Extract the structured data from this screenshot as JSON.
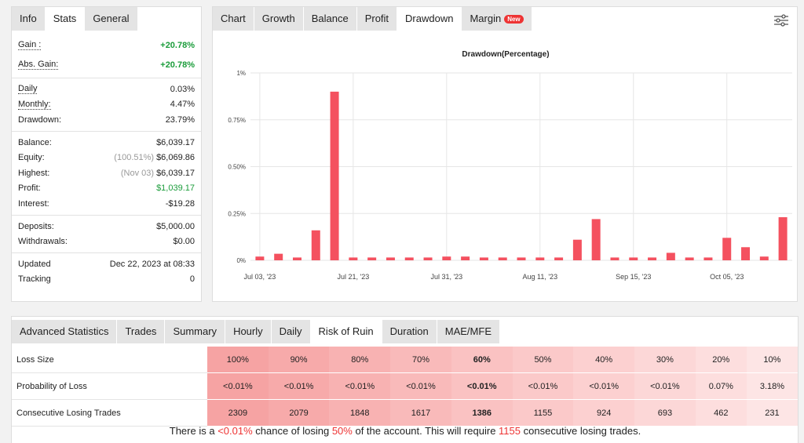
{
  "stats": {
    "tabs": [
      "Info",
      "Stats",
      "General"
    ],
    "active": 1,
    "groups": [
      [
        {
          "label": "Gain :",
          "value": "+20.78%",
          "color": "#1a9c3a"
        },
        {
          "label": "Abs. Gain:",
          "value": "+20.78%",
          "color": "#1a9c3a"
        }
      ],
      [
        {
          "label": "Daily",
          "value": "0.03%"
        },
        {
          "label": "Monthly:",
          "value": "4.47%"
        },
        {
          "label": "Drawdown:",
          "value": "23.79%"
        }
      ],
      [
        {
          "label": "Balance:",
          "value": "$6,039.17"
        },
        {
          "label": "Equity:",
          "note": "(100.51%)",
          "value": "$6,069.86"
        },
        {
          "label": "Highest:",
          "note": "(Nov 03)",
          "value": "$6,039.17"
        },
        {
          "label": "Profit:",
          "value": "$1,039.17",
          "color": "#1a9c3a"
        },
        {
          "label": "Interest:",
          "value": "-$19.28"
        }
      ],
      [
        {
          "label": "Deposits:",
          "value": "$5,000.00"
        },
        {
          "label": "Withdrawals:",
          "value": "$0.00"
        }
      ],
      [
        {
          "label": "Updated",
          "value": "Dec 22, 2023 at 08:33"
        },
        {
          "label": "Tracking",
          "value": "0"
        }
      ]
    ]
  },
  "chart_panel": {
    "tabs": [
      "Chart",
      "Growth",
      "Balance",
      "Profit",
      "Drawdown",
      "Margin"
    ],
    "active": 4,
    "badge": "New"
  },
  "chart_data": {
    "type": "bar",
    "title": "Drawdown(Percentage)",
    "color": "#f4515f",
    "grid": true,
    "categories": [
      "Jul 03, '23",
      null,
      null,
      null,
      null,
      "Jul 21, '23",
      null,
      null,
      null,
      null,
      "Jul 31, '23",
      null,
      null,
      null,
      null,
      "Aug 11, '23",
      null,
      null,
      null,
      null,
      "Sep 15, '23",
      null,
      null,
      null,
      null,
      "Oct 05, '23",
      null,
      null,
      null
    ],
    "values": [
      0.02,
      0.035,
      0.015,
      0.16,
      0.9,
      0.015,
      0.015,
      0.015,
      0.015,
      0.015,
      0.02,
      0.02,
      0.015,
      0.015,
      0.015,
      0.015,
      0.015,
      0.11,
      0.22,
      0.015,
      0.015,
      0.015,
      0.04,
      0.015,
      0.015,
      0.12,
      0.07,
      0.02,
      0.23
    ],
    "ylim": [
      0,
      1
    ],
    "yticks": [
      {
        "value": 0,
        "label": "0%"
      },
      {
        "value": 0.25,
        "label": "0.25%"
      },
      {
        "value": 0.5,
        "label": "0.50%"
      },
      {
        "value": 0.75,
        "label": "0.75%"
      },
      {
        "value": 1,
        "label": "1%"
      }
    ]
  },
  "advanced": {
    "tabs": [
      "Advanced Statistics",
      "Trades",
      "Summary",
      "Hourly",
      "Daily",
      "Risk of Ruin",
      "Duration",
      "MAE/MFE"
    ],
    "active": 5,
    "highlight_column": 4,
    "table": {
      "rows": [
        [
          "Loss Size",
          "100%",
          "90%",
          "80%",
          "70%",
          "60%",
          "50%",
          "40%",
          "30%",
          "20%",
          "10%"
        ],
        [
          "Probability of Loss",
          "<0.01%",
          "<0.01%",
          "<0.01%",
          "<0.01%",
          "<0.01%",
          "<0.01%",
          "<0.01%",
          "<0.01%",
          "0.07%",
          "3.18%"
        ],
        [
          "Consecutive Losing Trades",
          "2309",
          "2079",
          "1848",
          "1617",
          "1386",
          "1155",
          "924",
          "693",
          "462",
          "231"
        ]
      ]
    },
    "sentence": [
      "There is a ",
      "<0.01%",
      " chance of losing ",
      "50%",
      " of the account. This will require ",
      "1155",
      " consecutive losing trades."
    ]
  }
}
